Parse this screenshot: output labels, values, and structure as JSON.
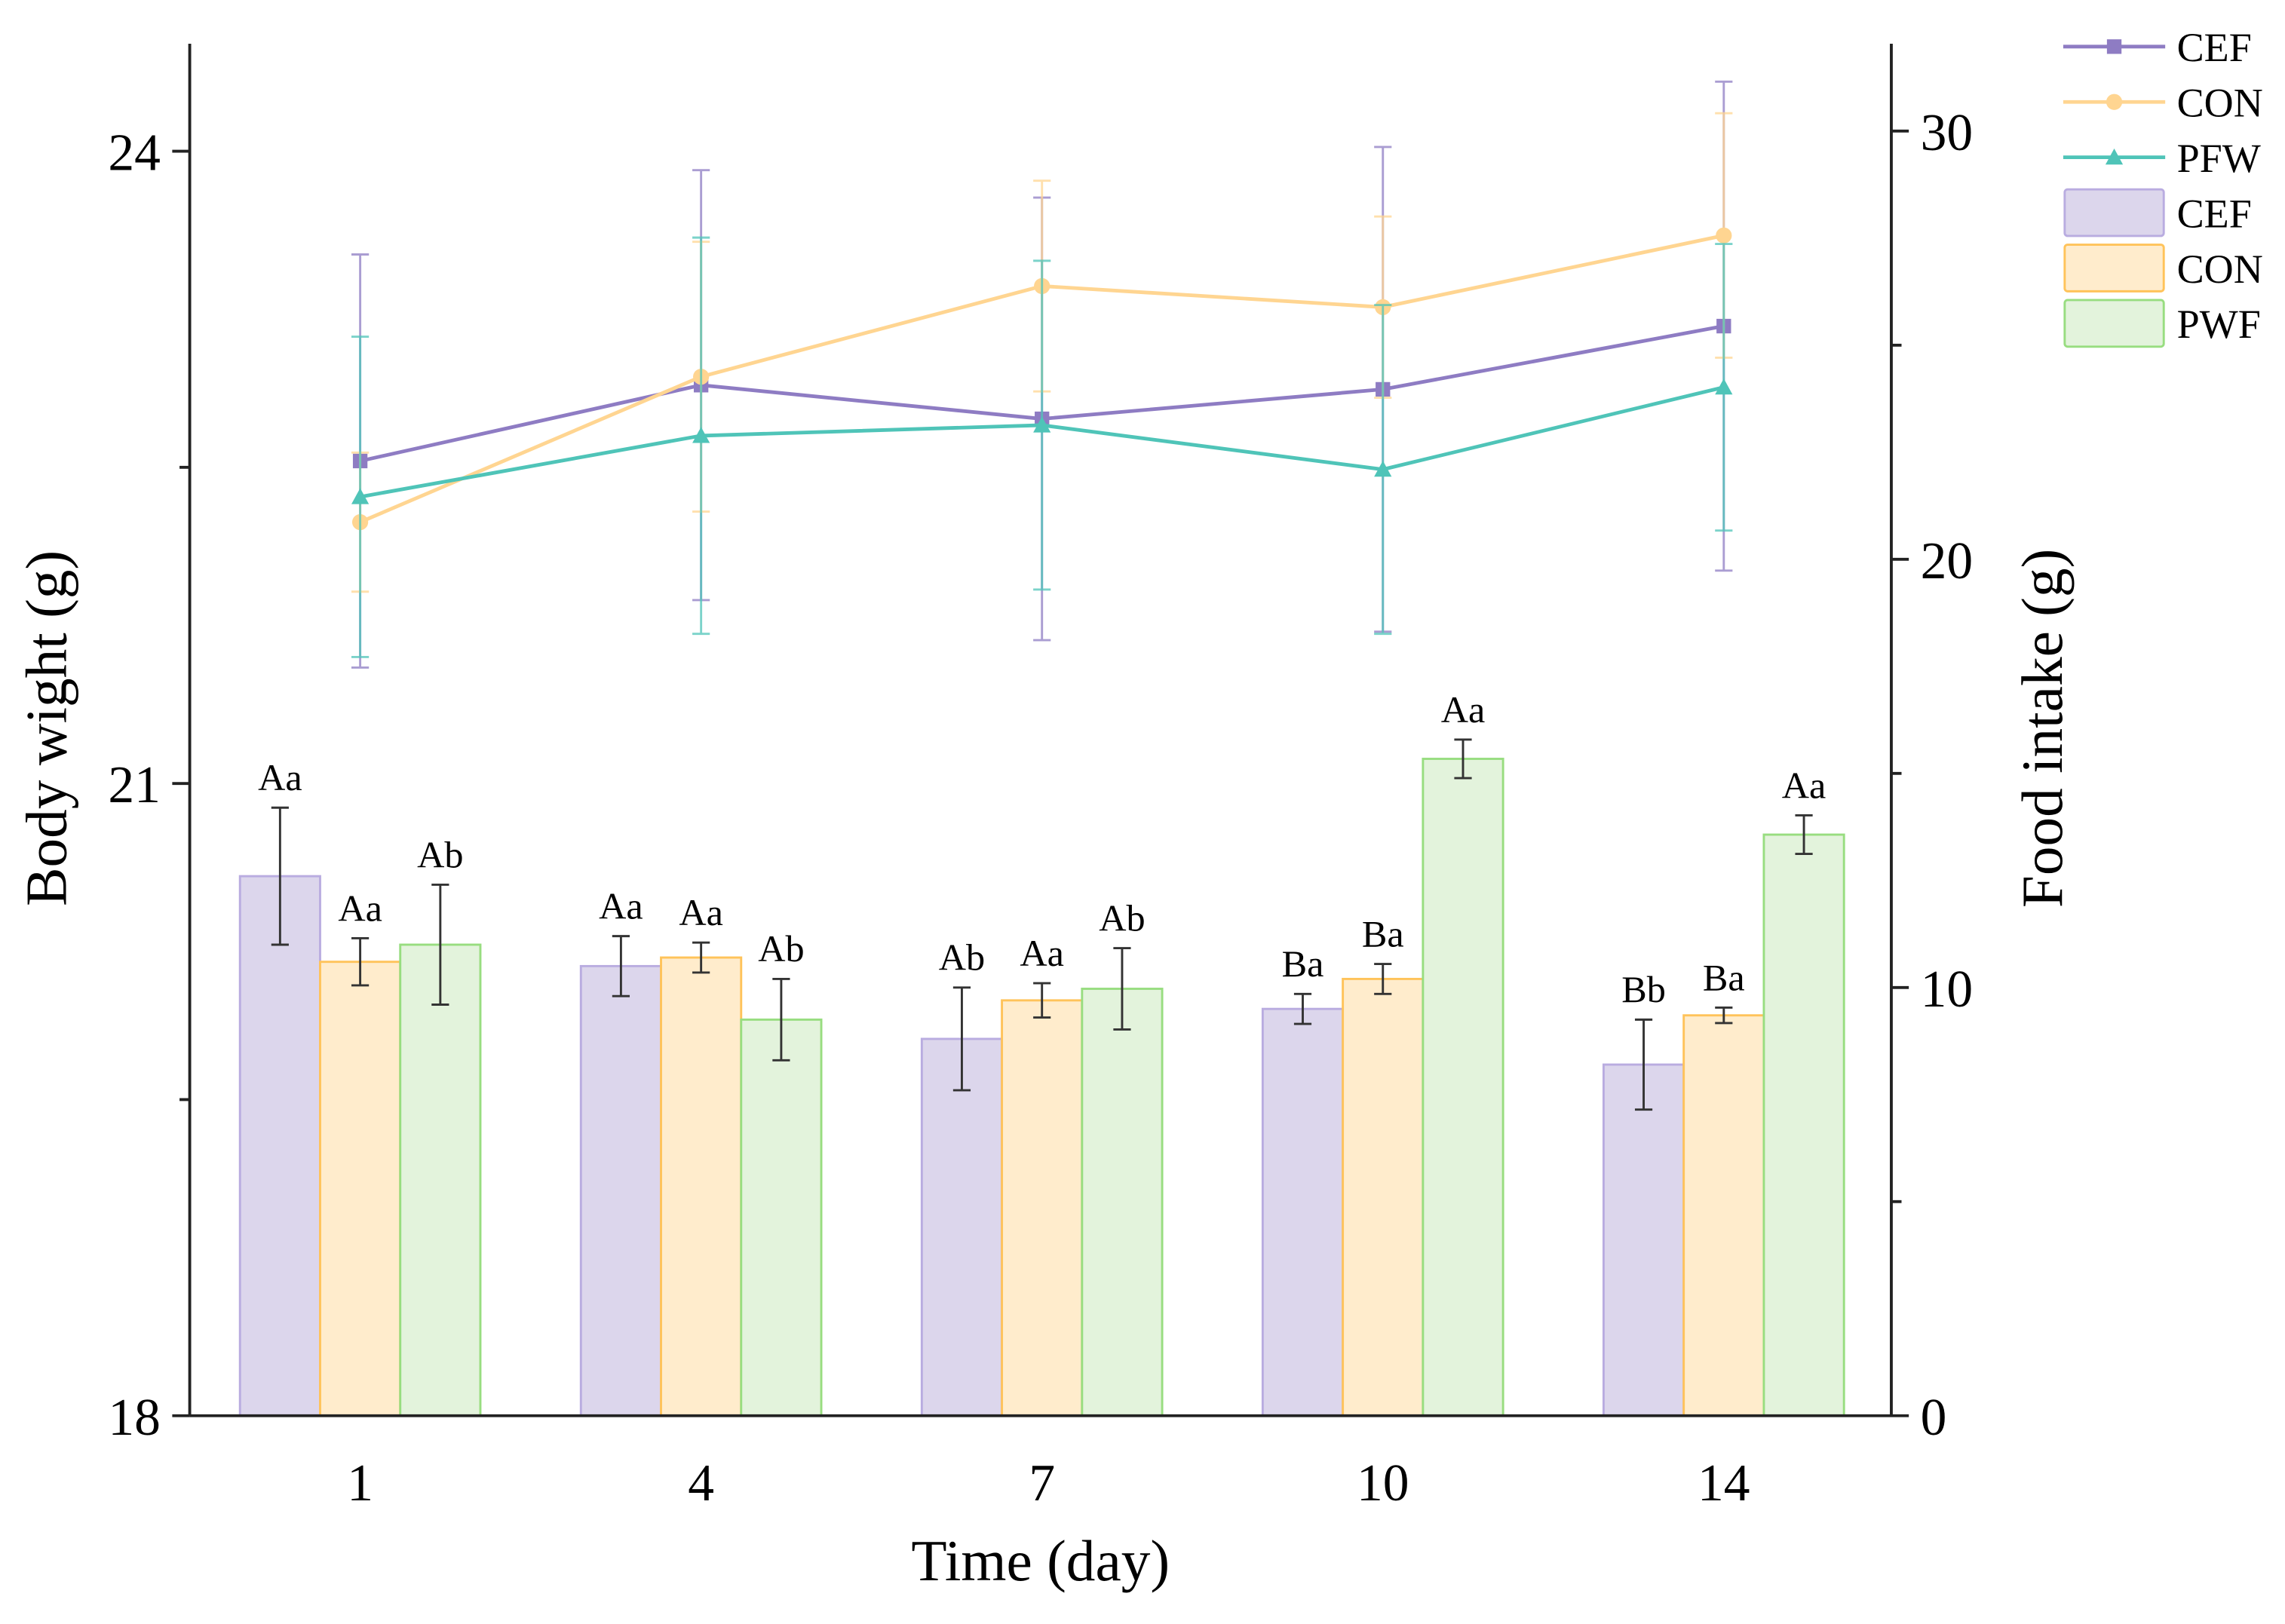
{
  "chart_data": {
    "type": "bar+line",
    "xlabel": "Time (day)",
    "ylabel_left": "Body wight (g)",
    "ylabel_right": "Food intake (g)",
    "categories": [
      "1",
      "4",
      "7",
      "10",
      "14"
    ],
    "ylim_left": [
      18,
      24.3
    ],
    "yticks_left": [
      18,
      21,
      24
    ],
    "ylim_right": [
      0,
      32
    ],
    "yticks_right": [
      0,
      10,
      20,
      30
    ],
    "legend_position": "top-right",
    "line_series": [
      {
        "name": "CEF",
        "color": "#8e7cc3",
        "marker": "square",
        "values": [
          22.53,
          22.89,
          22.73,
          22.87,
          23.17
        ],
        "errors": [
          0.98,
          1.02,
          1.05,
          1.15,
          1.16
        ]
      },
      {
        "name": "CON",
        "color": "#ffd591",
        "marker": "circle",
        "values": [
          22.24,
          22.93,
          23.36,
          23.26,
          23.6
        ],
        "errors": [
          0.33,
          0.64,
          0.5,
          0.43,
          0.58
        ]
      },
      {
        "name": "PFW",
        "color": "#4fc4b8",
        "marker": "triangle",
        "values": [
          22.36,
          22.65,
          22.7,
          22.49,
          22.88
        ],
        "errors": [
          0.76,
          0.94,
          0.78,
          0.78,
          0.68
        ]
      }
    ],
    "bar_series": [
      {
        "name": "CEF",
        "fill": "#dcd6ec",
        "stroke": "#b9ace0",
        "values": [
          12.6,
          10.5,
          8.8,
          9.5,
          8.2
        ],
        "errors": [
          1.6,
          0.7,
          1.2,
          0.35,
          1.05
        ],
        "labels": [
          "Aa",
          "Aa",
          "Ab",
          "Ba",
          "Bb"
        ]
      },
      {
        "name": "CON",
        "fill": "#ffeccc",
        "stroke": "#ffc35a",
        "values": [
          10.6,
          10.7,
          9.7,
          10.2,
          9.35
        ],
        "errors": [
          0.55,
          0.35,
          0.4,
          0.35,
          0.18
        ],
        "labels": [
          "Aa",
          "Aa",
          "Aa",
          "Ba",
          "Ba"
        ]
      },
      {
        "name": "PWF",
        "fill": "#e3f3dc",
        "stroke": "#98dd80",
        "values": [
          11.0,
          9.25,
          9.97,
          15.34,
          13.57
        ],
        "errors": [
          1.4,
          0.95,
          0.95,
          0.45,
          0.45
        ],
        "labels": [
          "Ab",
          "Ab",
          "Ab",
          "Aa",
          "Aa"
        ]
      }
    ]
  }
}
